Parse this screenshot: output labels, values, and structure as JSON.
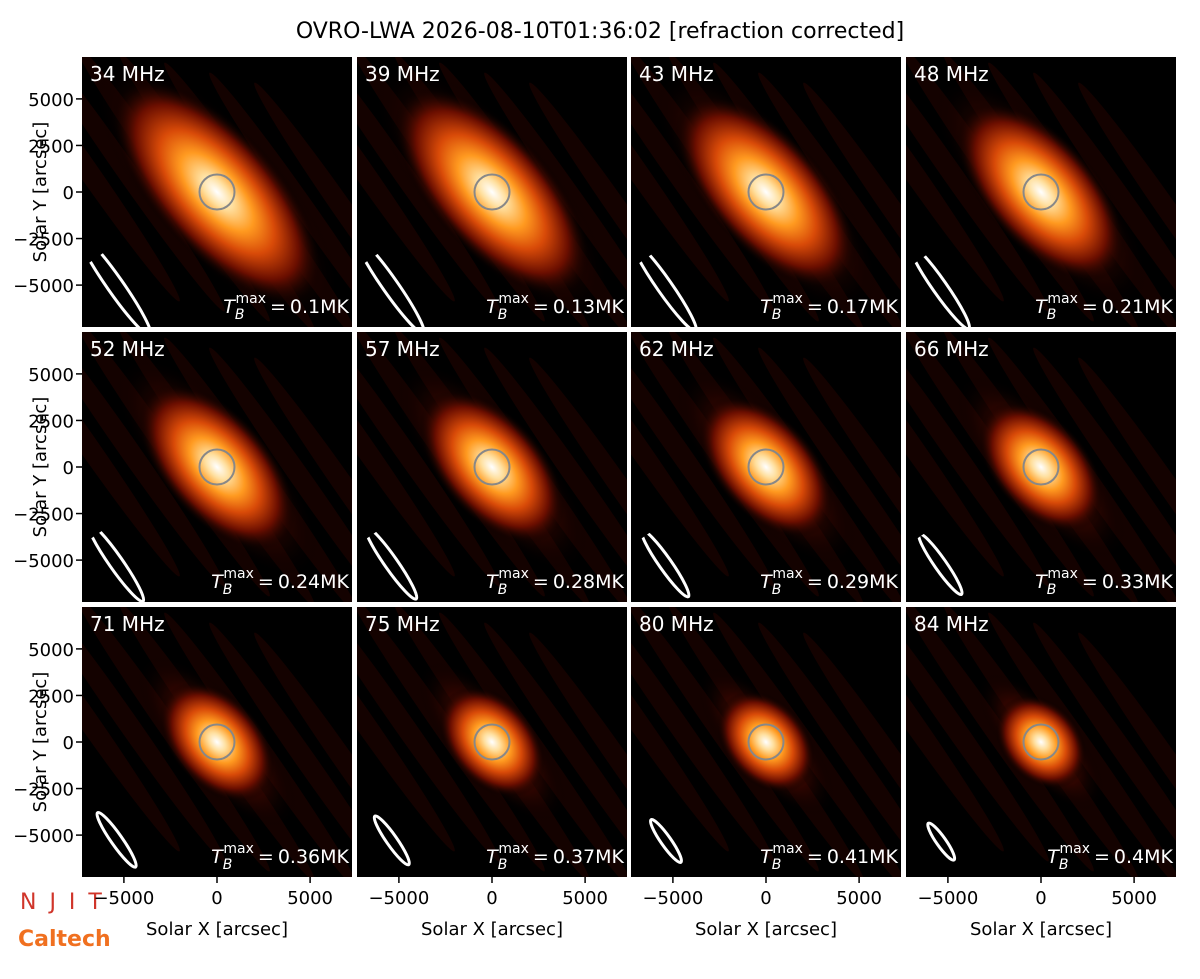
{
  "chart_data": {
    "type": "image-grid",
    "title": "OVRO-LWA 2026-08-10T01:36:02 [refraction corrected]",
    "xlabel": "Solar X [arcsec]",
    "ylabel": "Solar Y [arcsec]",
    "xlim": [
      -7250,
      7250
    ],
    "ylim": [
      -7250,
      7250
    ],
    "xticks": [
      {
        "value": -5000,
        "label": "−5000"
      },
      0,
      5000
    ],
    "yticks": [
      {
        "value": -5000,
        "label": "−5000"
      },
      {
        "value": -2500,
        "label": "−2500"
      },
      0,
      2500,
      5000
    ],
    "categories": [
      "34 MHz",
      "39 MHz",
      "43 MHz",
      "48 MHz",
      "52 MHz",
      "57 MHz",
      "62 MHz",
      "66 MHz",
      "71 MHz",
      "75 MHz",
      "80 MHz",
      "84 MHz"
    ],
    "tb_symbol": "T",
    "tb_sub": "B",
    "tb_sup": "max",
    "tb_eq": "=",
    "values": [
      0.1,
      0.13,
      0.17,
      0.21,
      0.24,
      0.28,
      0.29,
      0.33,
      0.36,
      0.37,
      0.41,
      0.4
    ],
    "value_labels": [
      "0.1MK",
      "0.13MK",
      "0.17MK",
      "0.21MK",
      "0.24MK",
      "0.28MK",
      "0.29MK",
      "0.33MK",
      "0.36MK",
      "0.37MK",
      "0.41MK",
      "0.4MK"
    ],
    "logos": [
      "N J I T",
      "Caltech"
    ]
  }
}
